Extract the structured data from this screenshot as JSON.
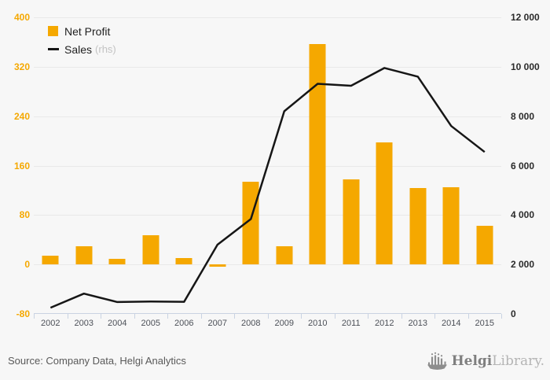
{
  "page": {
    "background": "#f7f7f7"
  },
  "legend": {
    "net_profit_label": "Net Profit",
    "sales_label": "Sales",
    "sales_suffix": "(rhs)"
  },
  "footer": {
    "source": "Source: Company Data, Helgi Analytics",
    "logo_bold": "Helgi",
    "logo_light": "Library."
  },
  "chart_data": {
    "type": "bar",
    "subtype": "bar-and-line-dual-axis",
    "categories": [
      "2002",
      "2003",
      "2004",
      "2005",
      "2006",
      "2007",
      "2008",
      "2009",
      "2010",
      "2011",
      "2012",
      "2013",
      "2014",
      "2015"
    ],
    "series": [
      {
        "name": "Net Profit",
        "type": "bar",
        "axis": "left",
        "color": "#f5a800",
        "values": [
          14,
          29,
          9,
          47,
          11,
          -4,
          134,
          30,
          357,
          138,
          198,
          124,
          125,
          62
        ]
      },
      {
        "name": "Sales (rhs)",
        "type": "line",
        "axis": "right",
        "color": "#161616",
        "values": [
          250,
          820,
          480,
          500,
          490,
          2800,
          3840,
          8200,
          9310,
          9230,
          9950,
          9600,
          7600,
          6550
        ]
      }
    ],
    "left_axis": {
      "min": -80,
      "max": 400,
      "tick_values": [
        400,
        320,
        240,
        160,
        80,
        0,
        -80
      ],
      "color": "#f5a800"
    },
    "right_axis": {
      "min": 0,
      "max": 12000,
      "tick_labels": [
        "12 000",
        "10 000",
        "8 000",
        "6 000",
        "4 000",
        "2 000",
        "0"
      ],
      "color": "#2b2b2b"
    },
    "grid": true,
    "legend_position": "top-left",
    "title": "",
    "xlabel": "",
    "ylabel": ""
  }
}
